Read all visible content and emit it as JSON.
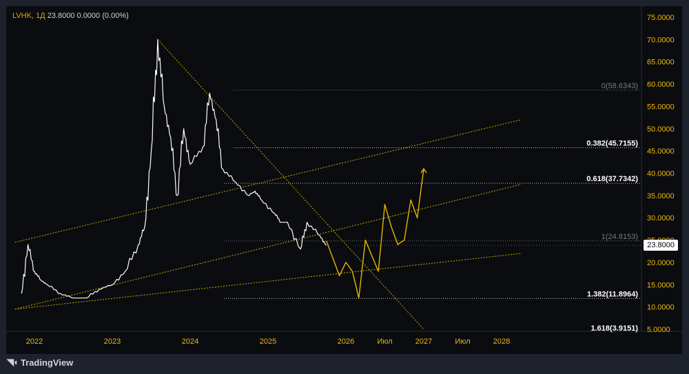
{
  "header": {
    "symbol": "LVHK",
    "interval": "1Д",
    "last": "23.8000",
    "change": "0.0000",
    "change_pct": "(0.00%)"
  },
  "price_tag": "23.8000",
  "brand": "TradingView",
  "colors": {
    "background": "#0b0c10",
    "price_line": "#ffffff",
    "projection": "#e6b800",
    "trend_line": "#c9b000",
    "fib_line": "#d1d4dc",
    "axis_text": "#f0b90b"
  },
  "chart_data": {
    "type": "line",
    "title": "",
    "xlabel": "",
    "ylabel": "",
    "ylim": [
      5,
      75
    ],
    "y_ticks": [
      "75.0000",
      "70.0000",
      "65.0000",
      "60.0000",
      "55.0000",
      "50.0000",
      "45.0000",
      "40.0000",
      "35.0000",
      "30.0000",
      "25.0000",
      "20.0000",
      "15.0000",
      "10.0000",
      "5.0000"
    ],
    "x_ticks": [
      "2022",
      "2023",
      "2024",
      "2025",
      "2026",
      "Июл",
      "2027",
      "Июл",
      "2028"
    ],
    "series": [
      {
        "role": "price",
        "x": [
          "2021-11",
          "2021-12",
          "2022-01",
          "2022-02",
          "2022-03",
          "2022-05",
          "2022-07",
          "2022-09",
          "2022-11",
          "2023-01",
          "2023-03",
          "2023-05",
          "2023-06",
          "2023-07",
          "2023-08",
          "2023-09",
          "2023-10",
          "2023-11",
          "2023-12",
          "2024-01",
          "2024-03",
          "2024-04",
          "2024-05",
          "2024-06",
          "2024-08",
          "2024-10",
          "2024-11",
          "2024-12",
          "2025-02",
          "2025-03",
          "2025-04",
          "2025-06",
          "2025-07",
          "2025-09",
          "2025-10"
        ],
        "values": [
          13,
          24,
          18,
          16,
          15,
          13,
          12,
          12,
          14,
          15,
          18,
          24,
          28,
          45,
          70,
          55,
          48,
          35,
          50,
          42,
          46,
          58,
          52,
          41,
          38,
          35,
          36,
          34,
          31,
          29,
          29,
          23,
          29,
          26,
          23.8
        ]
      },
      {
        "role": "projection",
        "x": [
          "2025-10",
          "2025-12",
          "2026-01",
          "2026-02",
          "2026-03",
          "2026-04",
          "2026-06",
          "2026-07",
          "2026-08",
          "2026-09",
          "2026-10",
          "2026-11",
          "2026-12",
          "2027-01"
        ],
        "values": [
          24.8,
          17,
          20,
          18,
          12,
          25,
          18,
          33,
          28,
          24,
          25,
          34,
          30,
          41
        ]
      }
    ],
    "trend_lines": [
      {
        "from": {
          "x": "2021-10",
          "y": 24.5
        },
        "to": {
          "x": "2028-04",
          "y": 52
        }
      },
      {
        "from": {
          "x": "2021-10",
          "y": 9.5
        },
        "to": {
          "x": "2028-04",
          "y": 37.5
        }
      },
      {
        "from": {
          "x": "2021-10",
          "y": 9.5
        },
        "to": {
          "x": "2028-04",
          "y": 22
        }
      },
      {
        "from": {
          "x": "2023-08",
          "y": 70
        },
        "to": {
          "x": "2027-01",
          "y": 5
        }
      }
    ],
    "fibonacci": [
      {
        "ratio": "0",
        "price": 58.6343,
        "label": "0(58.6343)",
        "emphasis": false
      },
      {
        "ratio": "0.382",
        "price": 45.7155,
        "label": "0.382(45.7155)",
        "emphasis": true
      },
      {
        "ratio": "0.618",
        "price": 37.7342,
        "label": "0.618(37.7342)",
        "emphasis": true
      },
      {
        "ratio": "1",
        "price": 24.8153,
        "label": "1(24.8153)",
        "emphasis": false
      },
      {
        "ratio": "1.382",
        "price": 11.8964,
        "label": "1.382(11.8964)",
        "emphasis": true
      },
      {
        "ratio": "1.618",
        "price": 3.9151,
        "label": "1.618(3.9151)",
        "emphasis": true
      }
    ]
  }
}
